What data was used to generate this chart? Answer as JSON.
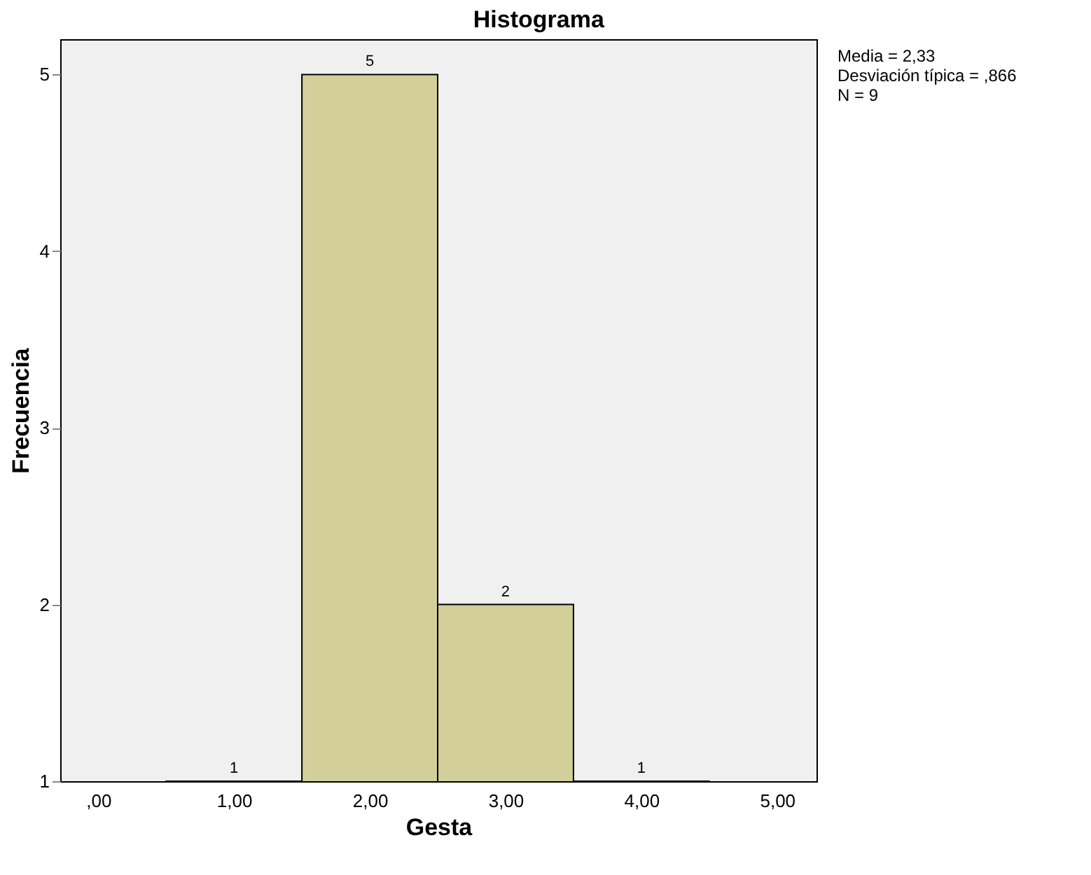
{
  "chart_data": {
    "type": "histogram",
    "title": "Histograma",
    "xlabel": "Gesta",
    "ylabel": "Frecuencia",
    "bins": [
      0.5,
      1.5,
      2.5,
      3.5,
      4.5
    ],
    "values": [
      1,
      5,
      2,
      1
    ],
    "color": "#d3cf9a",
    "xlim": [
      -0.28,
      5.29
    ],
    "xticks": [
      {
        "value": 0,
        "label": ",00"
      },
      {
        "value": 1,
        "label": "1,00"
      },
      {
        "value": 2,
        "label": "2,00"
      },
      {
        "value": 3,
        "label": "3,00"
      },
      {
        "value": 4,
        "label": "4,00"
      },
      {
        "value": 5,
        "label": "5,00"
      }
    ],
    "ylim": [
      1,
      5.2
    ],
    "yticks": [
      1,
      2,
      3,
      4,
      5
    ],
    "data_labels": true,
    "grid": false,
    "annotations": [
      "Media = 2,33",
      "Desviación típica = ,866",
      "N = 9"
    ]
  }
}
